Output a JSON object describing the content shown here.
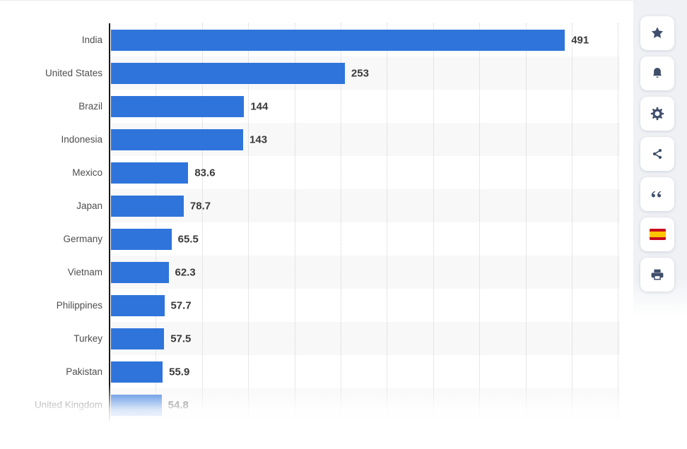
{
  "chart_data": {
    "type": "bar",
    "orientation": "horizontal",
    "title": "",
    "categories": [
      "India",
      "United States",
      "Brazil",
      "Indonesia",
      "Mexico",
      "Japan",
      "Germany",
      "Vietnam",
      "Philippines",
      "Turkey",
      "Pakistan",
      "United Kingdom"
    ],
    "values": [
      491,
      253,
      144,
      143,
      83.6,
      78.7,
      65.5,
      62.3,
      57.7,
      57.5,
      55.9,
      54.8
    ],
    "value_labels": [
      "491",
      "253",
      "144",
      "143",
      "83.6",
      "78.7",
      "65.5",
      "62.3",
      "57.7",
      "57.5",
      "55.9",
      "54.8"
    ],
    "xlim": [
      0,
      552
    ],
    "gridline_interval": 50,
    "grid_style": "vertical-dotted",
    "legend": "none",
    "bar_color": "#2F74DB",
    "row_striping": "alternate",
    "last_row_faded": true
  },
  "toolbar": {
    "buttons": [
      {
        "id": "favorite",
        "icon": "star-icon"
      },
      {
        "id": "notifications",
        "icon": "bell-icon"
      },
      {
        "id": "settings",
        "icon": "gear-icon"
      },
      {
        "id": "share",
        "icon": "share-icon"
      },
      {
        "id": "citation",
        "icon": "quote-icon"
      },
      {
        "id": "language-spanish",
        "icon": "spain-flag-icon"
      },
      {
        "id": "print",
        "icon": "printer-icon"
      }
    ]
  },
  "colors": {
    "bar": "#2F74DB",
    "category_label": "#4E4E4E",
    "value_label": "#3A3A3A",
    "row_stripe": "#F8F8F9",
    "gridline": "#CFCFCF",
    "axis": "#1A1A1A",
    "toolbar_bg": "#EFF1F5",
    "icon": "#3E4E6B",
    "flag_red": "#C60B1E",
    "flag_yellow": "#FFC400"
  }
}
